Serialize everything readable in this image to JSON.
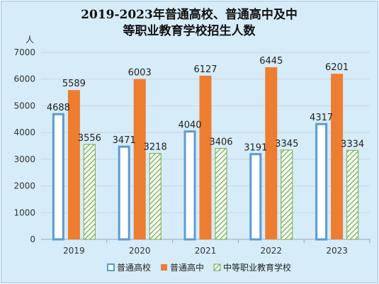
{
  "chart_data": {
    "type": "bar",
    "title_line1": "2019-2023年普通高校、普通高中及中",
    "title_line2": "等职业教育学校招生人数",
    "ylabel": "人",
    "ylim": [
      0,
      7000
    ],
    "yticks": [
      0,
      1000,
      2000,
      3000,
      4000,
      5000,
      6000,
      7000
    ],
    "grid": true,
    "legend_position": "bottom",
    "categories": [
      "2019",
      "2020",
      "2021",
      "2022",
      "2023"
    ],
    "series": [
      {
        "name": "普通高校",
        "values": [
          4688,
          3471,
          4040,
          3191,
          4317
        ],
        "color": "#5b9bd5",
        "style": "outline"
      },
      {
        "name": "普通高中",
        "values": [
          5589,
          6003,
          6127,
          6445,
          6201
        ],
        "color": "#ed7d31",
        "style": "solid"
      },
      {
        "name": "中等职业教育学校",
        "values": [
          3556,
          3218,
          3406,
          3345,
          3334
        ],
        "color": "#70ad47",
        "style": "hatch"
      }
    ]
  }
}
